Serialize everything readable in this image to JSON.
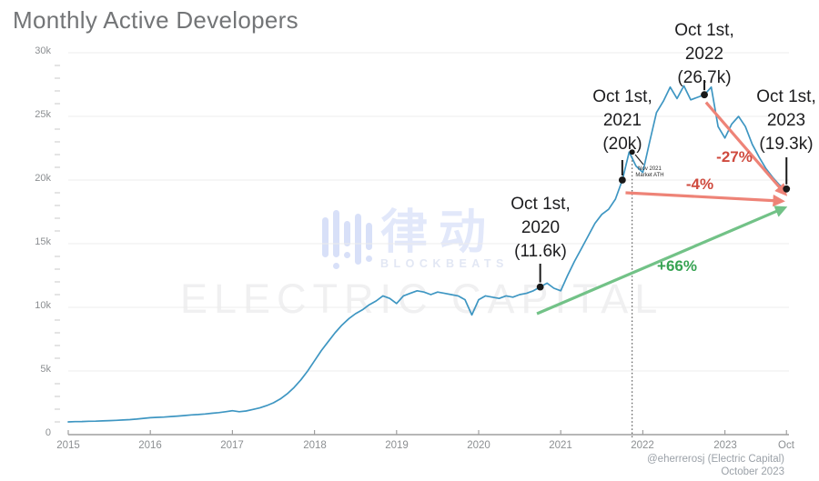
{
  "title": "Monthly Active Developers",
  "credit": {
    "line1": "@eherrerosj (Electric Capital)",
    "line2": "October 2023"
  },
  "watermark": {
    "blockbeats_logo": "blockbeats-bars-logo",
    "blockbeats_cn": "律动",
    "blockbeats_en": "BLOCKBEATS",
    "electric": "ELECTRIC CAPITAL"
  },
  "annotations": {
    "oct2020": [
      "Oct 1st,",
      "2020",
      "(11.6k)"
    ],
    "oct2021": [
      "Oct 1st,",
      "2021",
      "(20k)"
    ],
    "oct2022": [
      "Oct 1st,",
      "2022",
      "(26.7k)"
    ],
    "oct2023": [
      "Oct 1st,",
      "2023",
      "(19.3k)"
    ],
    "ath": [
      "Nov 2021",
      "Market ATH"
    ]
  },
  "colors": {
    "line": "#3e96c2",
    "dot": "#191919",
    "red_text": "#cf4a3e",
    "red_arrow": "#ee8377",
    "green_text": "#37a353",
    "green_arrow": "#72c287",
    "grid": "#ececec",
    "axis": "#9f9f9f",
    "tick_label": "#8c8f92",
    "title": "#737577"
  },
  "chart_data": {
    "type": "line",
    "title": "Monthly Active Developers",
    "series_name": "Monthly active developers",
    "interval": "monthly",
    "start_month": "2015-01",
    "end_month": "2023-10",
    "x_tick_labels": [
      "2015",
      "2016",
      "2017",
      "2018",
      "2019",
      "2020",
      "2021",
      "2022",
      "2023",
      "Oct"
    ],
    "x_tick_positions_years": [
      2015,
      2016,
      2017,
      2018,
      2019,
      2020,
      2021,
      2022,
      2023,
      2023.75
    ],
    "y_tick_labels": [
      "0",
      "5k",
      "10k",
      "15k",
      "20k",
      "25k",
      "30k"
    ],
    "ylabel": "",
    "xlabel": "",
    "ylim_thousands": [
      0,
      30
    ],
    "grid": "horizontal",
    "values_thousands": [
      1.0,
      1.02,
      1.03,
      1.05,
      1.06,
      1.08,
      1.1,
      1.12,
      1.15,
      1.18,
      1.22,
      1.28,
      1.33,
      1.36,
      1.38,
      1.42,
      1.46,
      1.5,
      1.55,
      1.58,
      1.62,
      1.68,
      1.73,
      1.8,
      1.88,
      1.8,
      1.86,
      1.98,
      2.1,
      2.28,
      2.5,
      2.8,
      3.2,
      3.7,
      4.3,
      5.0,
      5.8,
      6.6,
      7.3,
      8.0,
      8.6,
      9.1,
      9.5,
      9.8,
      10.2,
      10.5,
      10.9,
      10.7,
      10.3,
      10.9,
      11.1,
      11.3,
      11.2,
      11.0,
      11.2,
      11.1,
      11.0,
      10.9,
      10.6,
      9.4,
      10.6,
      10.9,
      10.8,
      10.7,
      10.9,
      10.8,
      11.0,
      11.1,
      11.3,
      11.6,
      11.9,
      11.5,
      11.3,
      12.5,
      13.6,
      14.6,
      15.6,
      16.6,
      17.3,
      17.7,
      18.5,
      20.0,
      22.2,
      21.1,
      20.6,
      23.0,
      25.3,
      26.2,
      27.3,
      26.4,
      27.4,
      26.3,
      26.5,
      26.7,
      27.3,
      24.2,
      23.3,
      24.4,
      25.0,
      24.2,
      22.8,
      21.8,
      20.9,
      20.2,
      19.6,
      19.3
    ],
    "annotations": [
      {
        "label": "Oct 1st, 2020 (11.6k)",
        "date": "2020-10-01",
        "x": 2020.75,
        "value": 11.6
      },
      {
        "label": "Oct 1st, 2021 (20k)",
        "date": "2021-10-01",
        "x": 2021.75,
        "value": 20.0
      },
      {
        "label": "Nov 2021 Market ATH",
        "date": "2021-11-01",
        "x": 2021.87,
        "value": 22.2,
        "small": true
      },
      {
        "label": "Oct 1st, 2022 (26.7k)",
        "date": "2022-10-01",
        "x": 2022.75,
        "value": 26.7
      },
      {
        "label": "Oct 1st, 2023 (19.3k)",
        "date": "2023-10-01",
        "x": 2023.75,
        "value": 19.3
      }
    ],
    "arrows": [
      {
        "label": "-27%",
        "color": "red",
        "from": [
          2022.77,
          26.1
        ],
        "to": [
          2023.73,
          18.95
        ]
      },
      {
        "label": "-4%",
        "color": "red",
        "from": [
          2021.79,
          19.0
        ],
        "to": [
          2023.69,
          18.35
        ]
      },
      {
        "label": "+66%",
        "color": "green",
        "from": [
          2020.71,
          9.5
        ],
        "to": [
          2023.72,
          17.8
        ]
      }
    ],
    "ath_line_x": 2021.87
  }
}
